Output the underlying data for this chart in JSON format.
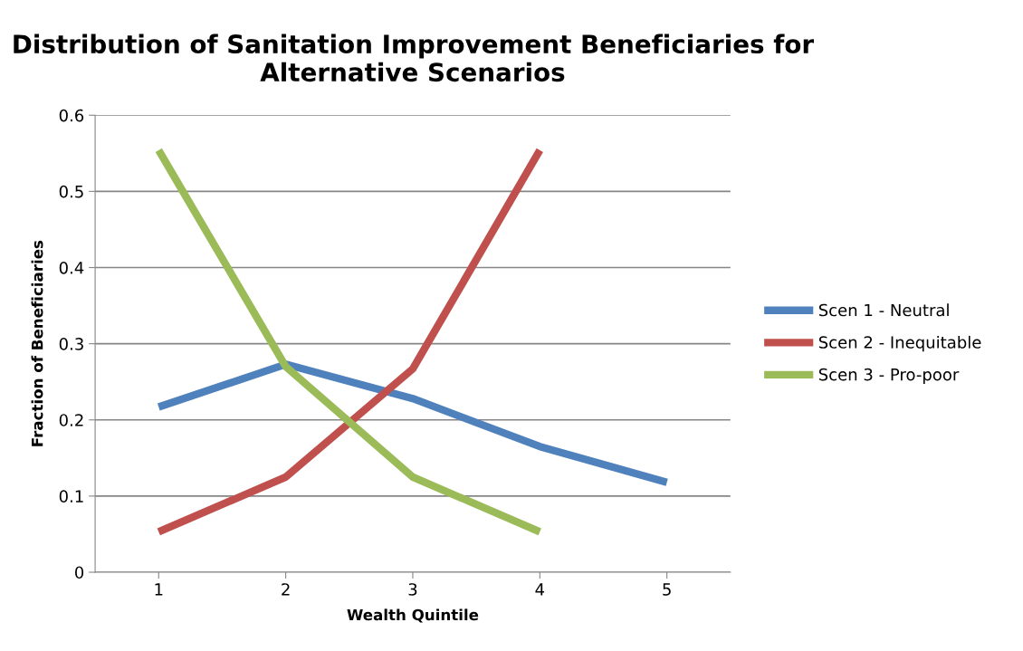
{
  "chart_data": {
    "type": "line",
    "title": "Distribution of Sanitation Improvement Beneficiaries for Alternative Scenarios",
    "xlabel": "Wealth Quintile",
    "ylabel": "Fraction of Beneficiaries",
    "categories": [
      "1",
      "2",
      "3",
      "4",
      "5"
    ],
    "series": [
      {
        "name": "Scen 1 - Neutral",
        "color": "#4f81bd",
        "values": [
          0.217,
          0.273,
          0.228,
          0.165,
          0.118
        ]
      },
      {
        "name": "Scen 2 - Inequitable",
        "color": "#c0504d",
        "values": [
          0.053,
          0.125,
          0.267,
          0.554,
          null
        ]
      },
      {
        "name": "Scen 3 - Pro-poor",
        "color": "#9bbb59",
        "values": [
          0.554,
          0.27,
          0.125,
          0.053,
          null
        ]
      }
    ],
    "ylim": [
      0,
      0.6
    ],
    "yticks": [
      0,
      0.1,
      0.2,
      0.3,
      0.4,
      0.5,
      0.6
    ],
    "grid": "y",
    "legend": "right",
    "marker": "none",
    "line_style": "solid"
  }
}
